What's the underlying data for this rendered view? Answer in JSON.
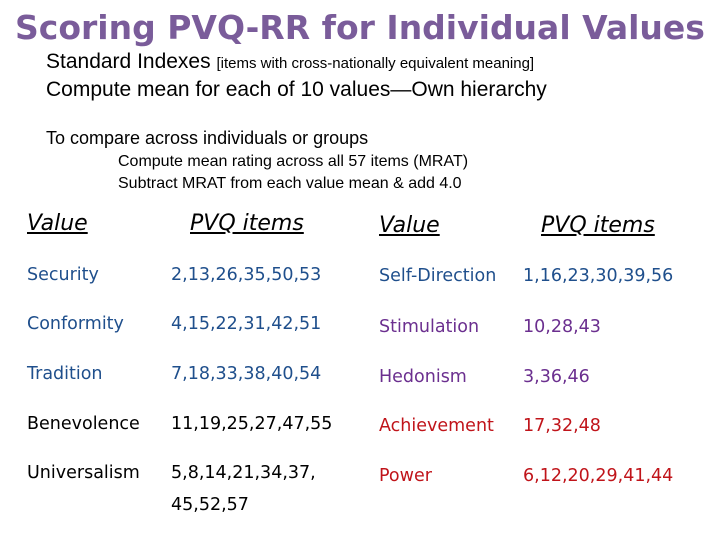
{
  "title": "Scoring PVQ-RR for Individual Values",
  "intro": {
    "line1_main": "Standard Indexes ",
    "line1_small": "[items with cross-nationally equivalent meaning]",
    "line2": "Compute mean for each of 10 values—Own hierarchy",
    "line3": "To compare across individuals or groups",
    "line4": "Compute mean rating across all 57 items (MRAT)",
    "line5": "Subtract MRAT from each value mean & add 4.0"
  },
  "table": {
    "headers": {
      "value_left": "Value",
      "items_left": "PVQ items",
      "value_right": "Value",
      "items_right": "PVQ items"
    },
    "left_rows": [
      {
        "value": "Security",
        "items": "2,13,26,35,50,53"
      },
      {
        "value": "Conformity",
        "items": "4,15,22,31,42,51"
      },
      {
        "value": "Tradition",
        "items": "7,18,33,38,40,54"
      },
      {
        "value": "Benevolence",
        "items": "11,19,25,27,47,55"
      },
      {
        "value": "Universalism",
        "items": "5,8,14,21,34,37,",
        "items_cont": "45,52,57"
      }
    ],
    "right_rows": [
      {
        "value": "Self-Direction",
        "items": "1,16,23,30,39,56"
      },
      {
        "value": "Stimulation",
        "items": "10,28,43"
      },
      {
        "value": "Hedonism",
        "items": "3,36,46"
      },
      {
        "value": "Achievement",
        "items": "17,32,48"
      },
      {
        "value": "Power",
        "items": "6,12,20,29,41,44"
      }
    ]
  },
  "colors": {
    "title": "#7a5c9a",
    "blue": "#1f4f8c",
    "purple": "#6b2f8f",
    "red": "#c0141a"
  }
}
